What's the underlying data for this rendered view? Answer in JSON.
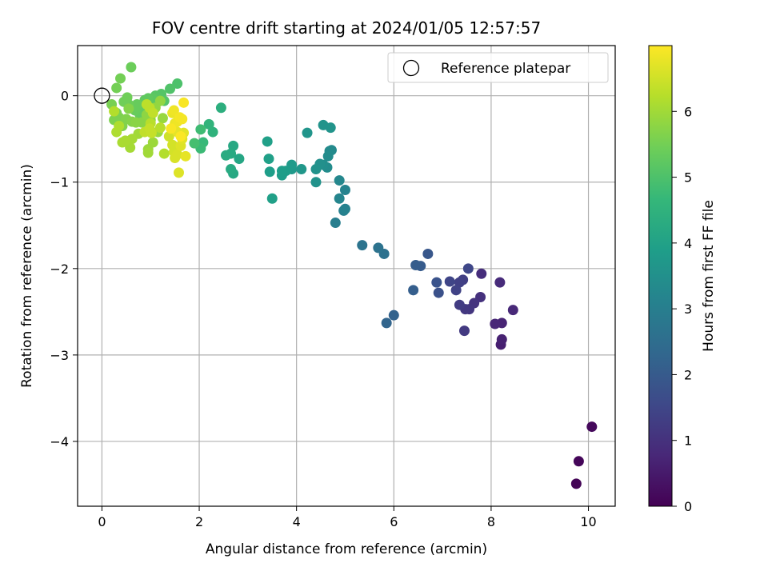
{
  "chart_data": {
    "type": "scatter",
    "title": "FOV centre drift starting at 2024/01/05 12:57:57",
    "xlabel": "Angular distance from reference (arcmin)",
    "ylabel": "Rotation from reference (arcmin)",
    "xlim": [
      -0.5,
      10.55
    ],
    "ylim": [
      -4.75,
      0.58
    ],
    "xticks": [
      0,
      2,
      4,
      6,
      8,
      10
    ],
    "xtick_labels": [
      "0",
      "2",
      "4",
      "6",
      "8",
      "10"
    ],
    "yticks": [
      0,
      -1,
      -2,
      -3,
      -4
    ],
    "ytick_labels": [
      "0",
      "−1",
      "−2",
      "−3",
      "−4"
    ],
    "grid": true,
    "legend": {
      "placement": "top-right",
      "entries": [
        {
          "label": "Reference platepar",
          "marker": "open-circle",
          "x": 0,
          "y": 0
        }
      ]
    },
    "colorbar": {
      "label": "Hours from first FF file",
      "colormap": "viridis",
      "range": [
        0,
        7
      ],
      "ticks": [
        0,
        1,
        2,
        3,
        4,
        5,
        6
      ],
      "tick_labels": [
        "0",
        "1",
        "2",
        "3",
        "4",
        "5",
        "6"
      ]
    },
    "colormap_stops": [
      "#440154",
      "#482878",
      "#3e4989",
      "#31688e",
      "#26828e",
      "#1f9e89",
      "#35b779",
      "#6ece58",
      "#b5de2b",
      "#fde725"
    ],
    "points": [
      [
        9.75,
        -4.49,
        0.05
      ],
      [
        9.8,
        -4.23,
        0.1
      ],
      [
        10.07,
        -3.83,
        0.15
      ],
      [
        8.2,
        -2.88,
        0.6
      ],
      [
        8.22,
        -2.82,
        0.65
      ],
      [
        8.22,
        -2.63,
        0.7
      ],
      [
        8.08,
        -2.64,
        0.75
      ],
      [
        8.45,
        -2.48,
        0.8
      ],
      [
        8.18,
        -2.16,
        0.85
      ],
      [
        7.8,
        -2.06,
        0.9
      ],
      [
        7.78,
        -2.33,
        1.0
      ],
      [
        7.65,
        -2.4,
        1.05
      ],
      [
        7.55,
        -2.47,
        1.1
      ],
      [
        7.47,
        -2.47,
        1.15
      ],
      [
        7.45,
        -2.72,
        1.2
      ],
      [
        7.35,
        -2.42,
        1.25
      ],
      [
        7.42,
        -2.13,
        1.3
      ],
      [
        7.35,
        -2.16,
        1.35
      ],
      [
        7.28,
        -2.25,
        1.4
      ],
      [
        7.15,
        -2.15,
        1.45
      ],
      [
        7.53,
        -2.0,
        1.5
      ],
      [
        6.92,
        -2.28,
        1.75
      ],
      [
        6.88,
        -2.16,
        1.8
      ],
      [
        6.7,
        -1.83,
        1.9
      ],
      [
        6.55,
        -1.97,
        2.0
      ],
      [
        6.45,
        -1.96,
        2.05
      ],
      [
        6.4,
        -2.25,
        2.1
      ],
      [
        6.0,
        -2.54,
        2.2
      ],
      [
        5.85,
        -2.63,
        2.25
      ],
      [
        5.8,
        -1.83,
        2.6
      ],
      [
        5.68,
        -1.76,
        2.65
      ],
      [
        5.35,
        -1.73,
        2.7
      ],
      [
        4.8,
        -1.47,
        3.0
      ],
      [
        4.97,
        -1.33,
        3.05
      ],
      [
        5.0,
        -1.31,
        3.1
      ],
      [
        5.0,
        -1.09,
        3.15
      ],
      [
        4.88,
        -1.19,
        3.2
      ],
      [
        4.88,
        -0.98,
        3.25
      ],
      [
        4.72,
        -0.63,
        3.3
      ],
      [
        4.68,
        -0.64,
        3.35
      ],
      [
        4.65,
        -0.7,
        3.4
      ],
      [
        4.63,
        -0.83,
        3.4
      ],
      [
        4.55,
        -0.8,
        3.45
      ],
      [
        4.48,
        -0.79,
        3.5
      ],
      [
        4.4,
        -0.85,
        3.55
      ],
      [
        4.4,
        -1.0,
        3.55
      ],
      [
        4.7,
        -0.37,
        3.6
      ],
      [
        4.55,
        -0.34,
        3.6
      ],
      [
        4.22,
        -0.43,
        3.65
      ],
      [
        4.1,
        -0.85,
        3.7
      ],
      [
        3.9,
        -0.85,
        3.75
      ],
      [
        3.9,
        -0.8,
        3.8
      ],
      [
        3.78,
        -0.87,
        3.85
      ],
      [
        3.7,
        -0.92,
        3.85
      ],
      [
        3.7,
        -0.87,
        3.9
      ],
      [
        3.45,
        -0.88,
        3.9
      ],
      [
        3.43,
        -0.73,
        3.95
      ],
      [
        3.4,
        -0.53,
        3.95
      ],
      [
        3.5,
        -1.19,
        3.95
      ],
      [
        2.82,
        -0.73,
        4.15
      ],
      [
        2.7,
        -0.9,
        4.2
      ],
      [
        2.7,
        -0.58,
        4.2
      ],
      [
        2.65,
        -0.85,
        4.25
      ],
      [
        2.65,
        -0.67,
        4.25
      ],
      [
        2.55,
        -0.69,
        4.3
      ],
      [
        2.45,
        -0.14,
        4.4
      ],
      [
        2.28,
        -0.42,
        4.5
      ],
      [
        2.2,
        -0.33,
        4.55
      ],
      [
        2.08,
        -0.54,
        4.7
      ],
      [
        2.03,
        -0.61,
        4.75
      ],
      [
        2.03,
        -0.39,
        4.8
      ],
      [
        1.9,
        -0.55,
        4.9
      ],
      [
        1.55,
        0.14,
        5.0
      ],
      [
        1.4,
        0.08,
        5.05
      ],
      [
        1.28,
        -0.06,
        5.1
      ],
      [
        1.22,
        0.02,
        5.1
      ],
      [
        1.15,
        -0.07,
        5.15
      ],
      [
        1.1,
        0.0,
        5.15
      ],
      [
        1.05,
        -0.03,
        5.2
      ],
      [
        1.0,
        -0.1,
        5.2
      ],
      [
        0.95,
        -0.03,
        5.25
      ],
      [
        0.88,
        -0.05,
        5.25
      ],
      [
        0.85,
        -0.14,
        5.3
      ],
      [
        0.78,
        -0.22,
        5.3
      ],
      [
        0.72,
        -0.1,
        5.35
      ],
      [
        0.68,
        -0.17,
        5.35
      ],
      [
        0.6,
        0.33,
        5.4
      ],
      [
        0.55,
        -0.1,
        5.4
      ],
      [
        0.52,
        -0.02,
        5.45
      ],
      [
        0.45,
        -0.07,
        5.45
      ],
      [
        0.38,
        0.2,
        5.5
      ],
      [
        0.3,
        0.09,
        5.5
      ],
      [
        0.3,
        -0.2,
        5.55
      ],
      [
        0.2,
        -0.1,
        5.55
      ],
      [
        0.25,
        -0.28,
        5.6
      ],
      [
        0.35,
        -0.25,
        5.6
      ],
      [
        0.42,
        -0.35,
        5.65
      ],
      [
        0.5,
        -0.27,
        5.65
      ],
      [
        0.55,
        -0.15,
        5.7
      ],
      [
        0.62,
        -0.3,
        5.7
      ],
      [
        0.7,
        -0.31,
        5.75
      ],
      [
        0.82,
        -0.31,
        5.75
      ],
      [
        0.92,
        -0.22,
        5.8
      ],
      [
        1.0,
        -0.28,
        5.8
      ],
      [
        1.1,
        -0.14,
        5.85
      ],
      [
        1.2,
        -0.06,
        5.85
      ],
      [
        1.25,
        -0.26,
        5.9
      ],
      [
        1.15,
        -0.42,
        5.9
      ],
      [
        1.05,
        -0.54,
        5.95
      ],
      [
        0.95,
        -0.62,
        5.95
      ],
      [
        0.95,
        -0.66,
        6.0
      ],
      [
        0.75,
        -0.44,
        6.0
      ],
      [
        0.62,
        -0.5,
        6.05
      ],
      [
        0.58,
        -0.6,
        6.05
      ],
      [
        0.48,
        -0.52,
        6.1
      ],
      [
        0.42,
        -0.54,
        6.1
      ],
      [
        0.35,
        -0.35,
        6.15
      ],
      [
        0.3,
        -0.42,
        6.15
      ],
      [
        0.25,
        -0.18,
        6.2
      ],
      [
        1.28,
        -0.67,
        6.2
      ],
      [
        1.2,
        -0.37,
        6.25
      ],
      [
        1.0,
        -0.32,
        6.25
      ],
      [
        0.92,
        -0.1,
        6.3
      ],
      [
        0.98,
        -0.14,
        6.3
      ],
      [
        1.05,
        -0.2,
        6.35
      ],
      [
        0.88,
        -0.42,
        6.35
      ],
      [
        0.98,
        -0.38,
        6.4
      ],
      [
        1.02,
        -0.43,
        6.4
      ],
      [
        1.38,
        -0.47,
        6.5
      ],
      [
        1.45,
        -0.57,
        6.55
      ],
      [
        1.48,
        -0.65,
        6.55
      ],
      [
        1.5,
        -0.72,
        6.6
      ],
      [
        1.55,
        -0.68,
        6.6
      ],
      [
        1.58,
        -0.89,
        6.65
      ],
      [
        1.62,
        -0.58,
        6.65
      ],
      [
        1.65,
        -0.5,
        6.7
      ],
      [
        1.68,
        -0.43,
        6.7
      ],
      [
        1.72,
        -0.7,
        6.75
      ],
      [
        1.55,
        -0.42,
        6.75
      ],
      [
        1.5,
        -0.32,
        6.8
      ],
      [
        1.45,
        -0.2,
        6.8
      ],
      [
        1.48,
        -0.17,
        6.85
      ],
      [
        1.55,
        -0.3,
        6.85
      ],
      [
        1.6,
        -0.25,
        6.9
      ],
      [
        1.65,
        -0.27,
        6.9
      ],
      [
        1.42,
        -0.38,
        6.95
      ],
      [
        1.68,
        -0.08,
        6.95
      ],
      [
        1.62,
        -0.47,
        6.98
      ]
    ]
  }
}
